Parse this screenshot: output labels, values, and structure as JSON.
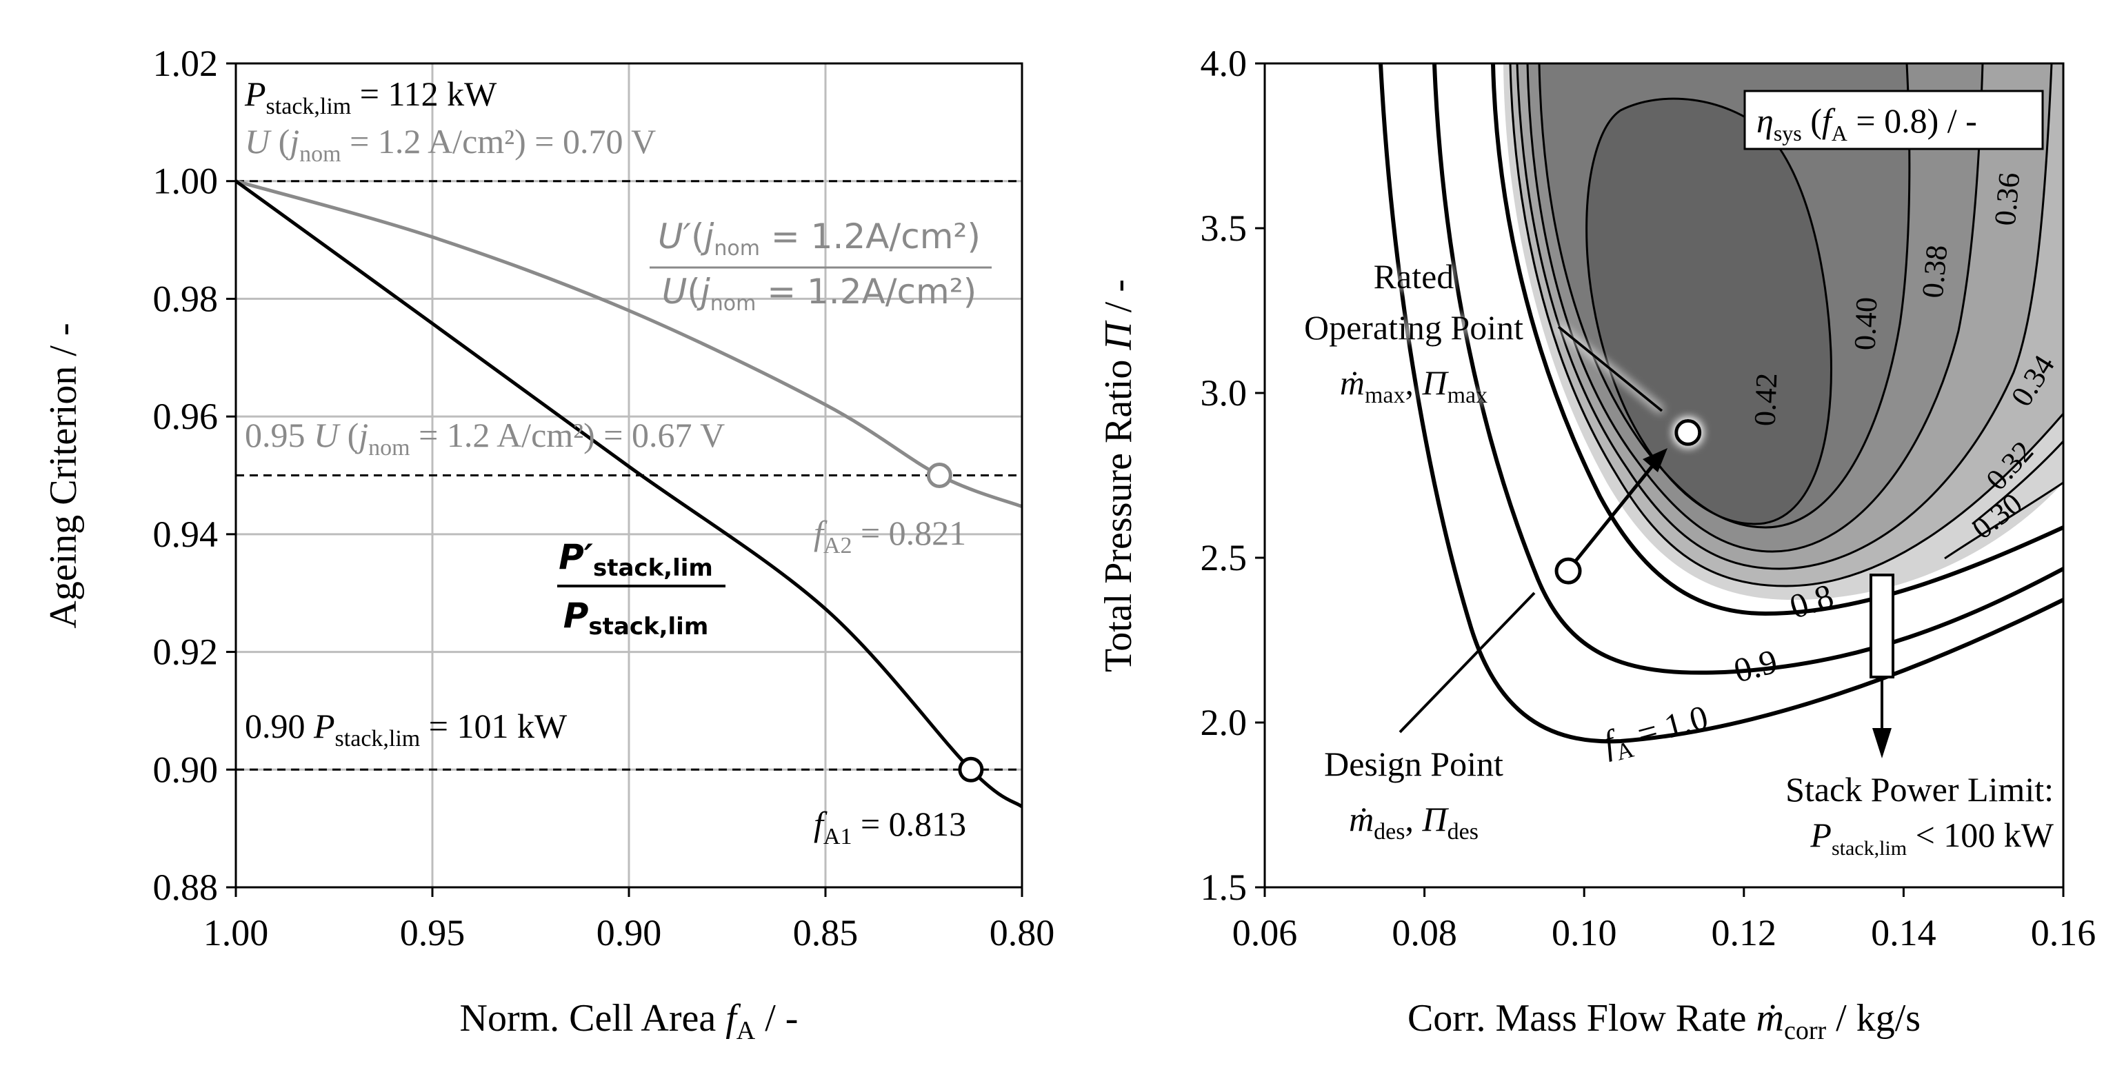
{
  "chart_data": [
    {
      "id": "left",
      "type": "line",
      "title": "",
      "xlabel": "Norm. Cell Area f_A / -",
      "ylabel": "Ageing Criterion / -",
      "xlim": [
        1.0,
        0.8
      ],
      "ylim": [
        0.88,
        1.02
      ],
      "x_ticks": [
        "1.00",
        "0.95",
        "0.90",
        "0.85",
        "0.80"
      ],
      "y_ticks": [
        "0.88",
        "0.90",
        "0.92",
        "0.94",
        "0.96",
        "0.98",
        "1.00",
        "1.02"
      ],
      "grid": true,
      "series": [
        {
          "name": "P'stack,lim / Pstack,lim",
          "color": "#000000",
          "x": [
            1.0,
            0.95,
            0.9,
            0.85,
            0.813,
            0.8
          ],
          "y": [
            1.0,
            0.9758,
            0.9515,
            0.9273,
            0.9,
            0.8937
          ]
        },
        {
          "name": "U'(jnom = 1.2A/cm²) / U(jnom = 1.2A/cm²)",
          "color": "#8a8a8a",
          "x": [
            1.0,
            0.95,
            0.9,
            0.85,
            0.821,
            0.8
          ],
          "y": [
            1.0,
            0.9905,
            0.978,
            0.962,
            0.95,
            0.9447
          ]
        }
      ],
      "reference_lines": [
        {
          "y": 1.0,
          "style": "dashed"
        },
        {
          "y": 0.95,
          "style": "dashed"
        },
        {
          "y": 0.9,
          "style": "dashed"
        }
      ],
      "markers": [
        {
          "x": 0.821,
          "y": 0.95,
          "color": "#8a8a8a"
        },
        {
          "x": 0.813,
          "y": 0.9,
          "color": "#000000"
        }
      ],
      "annotations": {
        "p_stack_lim": {
          "sym": "P",
          "sub": "stack,lim",
          "rest": " = 112 kW"
        },
        "u_nom": {
          "sym": "U",
          "paren": " (",
          "j": "j",
          "sub": "nom",
          "rest": " = 1.2 A/cm²) = 0.70 V"
        },
        "u_95": {
          "pre": "0.95 ",
          "sym": "U",
          "paren": " (",
          "j": "j",
          "sub": "nom",
          "rest": " = 1.2 A/cm²) = 0.67 V"
        },
        "p_90": {
          "pre": "0.90 ",
          "sym": "P",
          "sub": "stack,lim",
          "rest": " = 101 kW"
        },
        "ratio_u_num": {
          "sym": "U′",
          "paren": "(",
          "j": "j",
          "sub": "nom",
          "rest": " = 1.2A/cm²)"
        },
        "ratio_u_den": {
          "sym": "U",
          "paren": "(",
          "j": "j",
          "sub": "nom",
          "rest": " = 1.2A/cm²)"
        },
        "ratio_p_num": {
          "sym": "P′",
          "sub": "stack,lim"
        },
        "ratio_p_den": {
          "sym": "P",
          "sub": "stack,lim"
        },
        "fa2": {
          "sym": "f",
          "sub": "A2",
          "rest": " = 0.821"
        },
        "fa1": {
          "sym": "f",
          "sub": "A1",
          "rest": " = 0.813"
        }
      },
      "xlabel_parts": {
        "pre": "Norm. Cell Area ",
        "sym": "f",
        "sub": "A",
        "rest": " / -"
      }
    },
    {
      "id": "right",
      "type": "contour",
      "title": "",
      "xlabel": "Corr. Mass Flow Rate ṁcorr / kg/s",
      "ylabel": "Total Pressure Ratio Π / -",
      "xlim": [
        0.06,
        0.16
      ],
      "ylim": [
        1.5,
        4.0
      ],
      "x_ticks": [
        "0.06",
        "0.08",
        "0.10",
        "0.12",
        "0.14",
        "0.16"
      ],
      "y_ticks": [
        "1.5",
        "2.0",
        "2.5",
        "3.0",
        "3.5",
        "4.0"
      ],
      "grid": false,
      "legend": {
        "sym": "η",
        "sub": "sys",
        "mid": " (",
        "f": "f",
        "fsub": "A",
        "rest": " = 0.8) / -"
      },
      "efficiency_contours": [
        "0.30",
        "0.32",
        "0.34",
        "0.36",
        "0.38",
        "0.40",
        "0.42"
      ],
      "fa_contours": [
        "0.8",
        "0.9"
      ],
      "fa_contour_last": {
        "sym": "f",
        "sub": "A",
        "rest": " = 1.0"
      },
      "rated_point": {
        "x": 0.113,
        "y": 2.88,
        "line1": "Rated",
        "line2": "Operating Point",
        "sym1": "ṁ",
        "sub1": "max",
        "sep": ", ",
        "sym2": "Π",
        "sub2": "max"
      },
      "design_point": {
        "x": 0.098,
        "y": 2.46,
        "line1": "Design Point",
        "sym1": "ṁ",
        "sub1": "des",
        "sep": ", ",
        "sym2": "Π",
        "sub2": "des"
      },
      "stack_power_limit": {
        "x": 0.138,
        "line1": "Stack Power Limit:",
        "sym": "P",
        "sub": "stack,lim",
        "rest": " < 100 kW"
      },
      "xlabel_parts": {
        "pre": "Corr. Mass Flow Rate ",
        "sym": "ṁ",
        "sub": "corr",
        "rest": " / kg/s"
      },
      "ylabel_parts": {
        "pre": "Total Pressure Ratio ",
        "sym": "Π",
        "rest": " / -"
      }
    }
  ]
}
